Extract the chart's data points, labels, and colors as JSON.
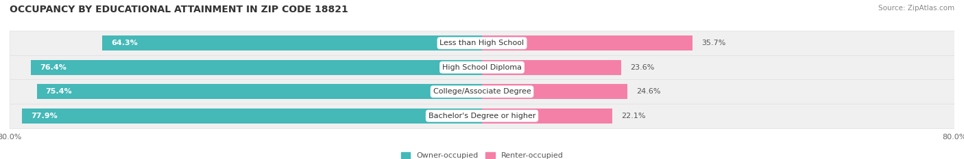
{
  "title": "OCCUPANCY BY EDUCATIONAL ATTAINMENT IN ZIP CODE 18821",
  "source": "Source: ZipAtlas.com",
  "categories": [
    "Less than High School",
    "High School Diploma",
    "College/Associate Degree",
    "Bachelor's Degree or higher"
  ],
  "owner_pct": [
    64.3,
    76.4,
    75.4,
    77.9
  ],
  "renter_pct": [
    35.7,
    23.6,
    24.6,
    22.1
  ],
  "owner_color": "#45b8b8",
  "renter_color": "#f480a8",
  "bg_color": "#ffffff",
  "row_bg_color": "#f0f0f0",
  "axis_min": -80.0,
  "axis_max": 80.0,
  "x_tick_left_label": "80.0%",
  "x_tick_right_label": "80.0%",
  "title_fontsize": 10,
  "source_fontsize": 7.5,
  "label_fontsize": 8,
  "category_fontsize": 8,
  "tick_fontsize": 8,
  "legend_fontsize": 8,
  "bar_height": 0.62
}
